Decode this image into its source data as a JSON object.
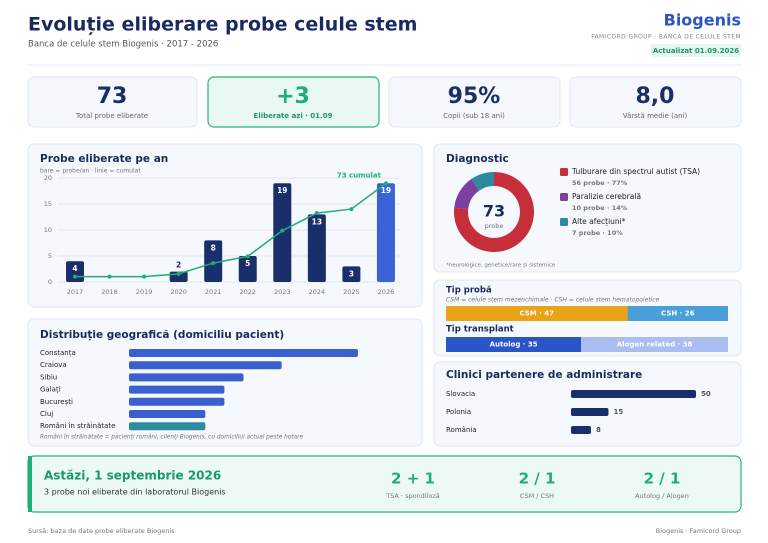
{
  "header": {
    "title": "Evoluție eliberare probe celule stem",
    "subtitle": "Banca de celule stem Biogenis · 2017 - 2026",
    "brand": "Biogenis",
    "brand_tagline": "FAMICORD GROUP · BANCA DE CELULE STEM",
    "updated": "Actualizat 01.09.2026"
  },
  "kpis": [
    {
      "value": "73",
      "label": "Total probe eliberate"
    },
    {
      "value": "+3",
      "label": "Eliberate azi · 01.09"
    },
    {
      "value": "95%",
      "label": "Copii (sub 18 ani)"
    },
    {
      "value": "8,0",
      "label": "Vârstă medie (ani)"
    }
  ],
  "chart_data": [
    {
      "type": "bar",
      "title": "Probe eliberate pe an",
      "subtitle": "bare = probe/an · linie = cumulat",
      "categories": [
        "2017",
        "2018",
        "2019",
        "2020",
        "2021",
        "2022",
        "2023",
        "2024",
        "2025",
        "2026"
      ],
      "ylim": [
        0,
        20
      ],
      "yticks": [
        0,
        5,
        10,
        15,
        20
      ],
      "y2lim": [
        0,
        77
      ],
      "grid": true,
      "series": [
        {
          "values": [
            4,
            0,
            0,
            2,
            8,
            5,
            19,
            13,
            3,
            19
          ],
          "colors": [
            "#1a2e6b",
            "#1a2e6b",
            "#1a2e6b",
            "#1a2e6b",
            "#1a2e6b",
            "#1a2e6b",
            "#1a2e6b",
            "#1a2e6b",
            "#1a2e6b",
            "#3a63d8"
          ]
        },
        {
          "type": "line",
          "axis": "y2",
          "color": "#1fae76",
          "values": [
            4,
            4,
            4,
            6,
            14,
            19,
            38,
            51,
            54,
            73
          ]
        }
      ],
      "annotation": "73 cumulat"
    },
    {
      "type": "pie",
      "title": "Diagnostic",
      "center_value": "73",
      "center_label": "probe",
      "categories": [
        "Tulburare din spectrul autist (TSA)",
        "Paralizie cerebrală",
        "Alte afecțiuni*"
      ],
      "values": [
        56,
        10,
        7
      ],
      "value_labels": [
        "56 probe · 77%",
        "10 probe · 14%",
        "7 probe · 10%"
      ],
      "colors": [
        "#c62f3a",
        "#7b3fa0",
        "#2e8b9e"
      ],
      "note": "*neurologice, genetice/rare și sistemice"
    },
    {
      "type": "stacked-bar",
      "title": "Tip probă",
      "subtitle": "CSM = celule stem mezenchimale · CSH = celule stem hematopoietice",
      "values": [
        47,
        26
      ],
      "value_labels": [
        "CSM · 47",
        "CSH · 26"
      ],
      "colors": [
        "#e8a317",
        "#4a9fd8"
      ],
      "text_colors": [
        "#ffffff",
        "#ffffff"
      ]
    },
    {
      "type": "stacked-bar",
      "title": "Tip transplant",
      "values": [
        35,
        38
      ],
      "value_labels": [
        "Autolog · 35",
        "Alogen related · 38"
      ],
      "colors": [
        "#2a55c8",
        "#a9bdf0"
      ],
      "text_colors": [
        "#ffffff",
        "#ffffff"
      ]
    },
    {
      "type": "hbar",
      "title": "Distribuție geografică (domiciliu pacient)",
      "categories": [
        "Constanța",
        "Craiova",
        "Sibiu",
        "Galați",
        "București",
        "Cluj",
        "Români în străinătate"
      ],
      "values": [
        12,
        8,
        6,
        5,
        5,
        4,
        4
      ],
      "xlim": [
        0,
        12
      ],
      "colors": [
        "#3a5fd0",
        "#3a5fd0",
        "#3a5fd0",
        "#3a5fd0",
        "#3a5fd0",
        "#3a5fd0",
        "#2e8b9e"
      ],
      "note": "Români în străinătate = pacienți români, clienți Biogenis, cu domiciliul actual peste hotare"
    },
    {
      "type": "hbar",
      "title": "Clinici partenere de administrare",
      "categories": [
        "Slovacia",
        "Polonia",
        "România"
      ],
      "values": [
        50,
        15,
        8
      ],
      "xlim": [
        0,
        50
      ],
      "colors": [
        "#1a2e6b",
        "#1a2e6b",
        "#1a2e6b"
      ],
      "show_values": true
    }
  ],
  "banner": {
    "title": "Astăzi, 1 septembrie 2026",
    "subtitle": "3 probe noi eliberate din laboratorul Biogenis",
    "stats": [
      {
        "value": "2 + 1",
        "label": "TSA · spondiloză"
      },
      {
        "value": "2 / 1",
        "label": "CSM / CSH"
      },
      {
        "value": "2 / 1",
        "label": "Autolog / Alogen"
      }
    ]
  },
  "footer": {
    "source": "Sursă: baza de date probe eliberate Biogenis",
    "credit": "Biogenis · Famicord Group"
  }
}
